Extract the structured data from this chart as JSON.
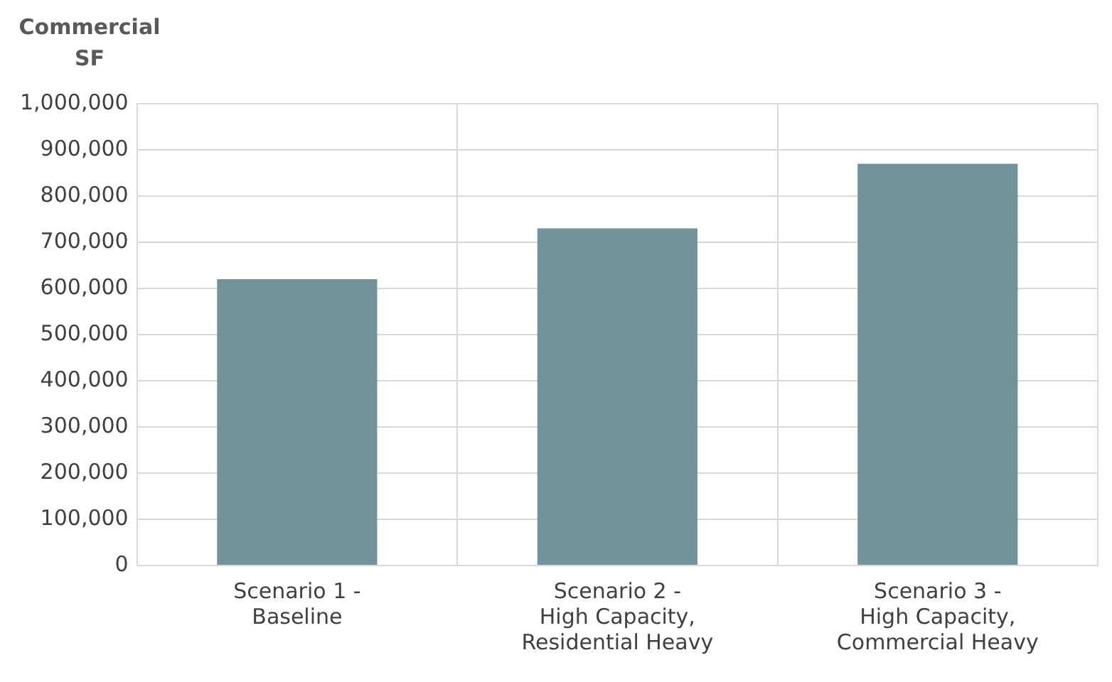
{
  "chart_data": {
    "type": "bar",
    "ylabel": "Commercial SF",
    "categories": [
      "Scenario 1 - Baseline",
      "Scenario 2 - High Capacity, Residential Heavy",
      "Scenario 3 - High Capacity, Commercial Heavy"
    ],
    "values": [
      620000,
      730000,
      870000
    ],
    "color": "#71939a",
    "ylim": [
      0,
      1000000
    ],
    "yticks": [
      0,
      {
        "value": 100000,
        "label": "100,000"
      },
      {
        "value": 200000,
        "label": "200,000"
      },
      {
        "value": 300000,
        "label": "300,000"
      },
      {
        "value": 400000,
        "label": "400,000"
      },
      {
        "value": 500000,
        "label": "500,000"
      },
      {
        "value": 600000,
        "label": "600,000"
      },
      {
        "value": 700000,
        "label": "700,000"
      },
      {
        "value": 800000,
        "label": "800,000"
      },
      {
        "value": 900000,
        "label": "900,000"
      },
      {
        "value": 1000000,
        "label": "1,000,000"
      }
    ],
    "grid": true,
    "legend": false
  }
}
